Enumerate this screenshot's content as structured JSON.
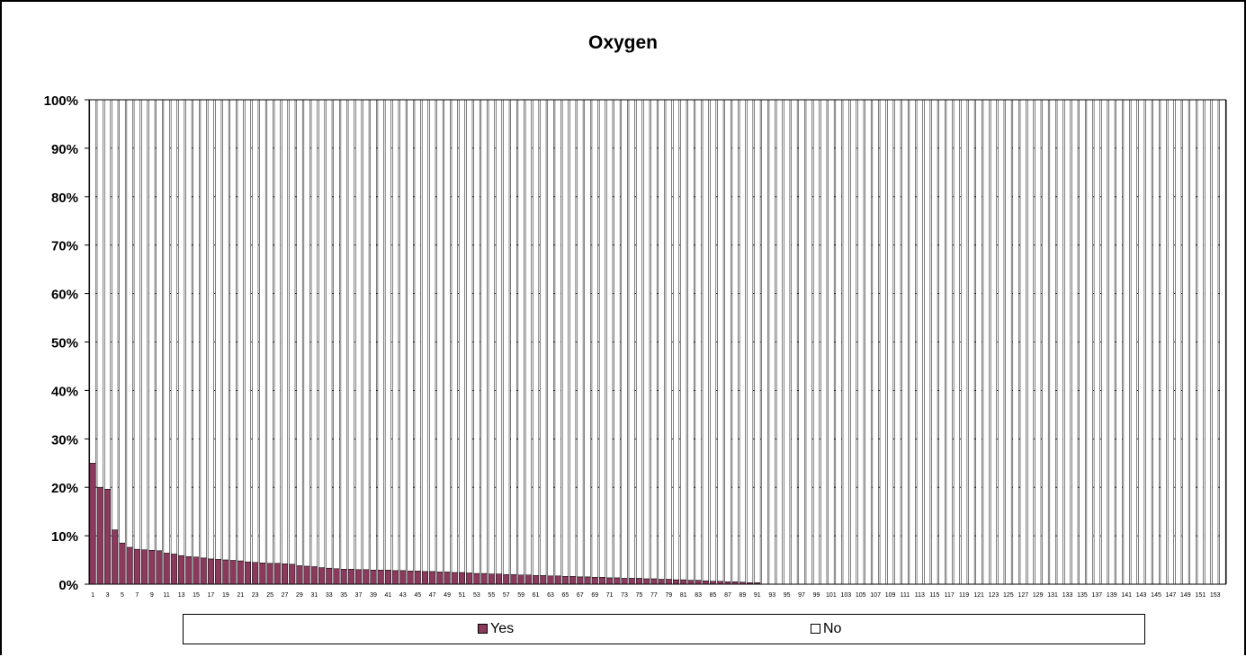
{
  "chart_data": {
    "type": "bar",
    "stacked": "percent",
    "title": "Oxygen",
    "xlabel": "",
    "ylabel": "",
    "ylim": [
      0,
      100
    ],
    "y_ticks": [
      "0%",
      "10%",
      "20%",
      "30%",
      "40%",
      "50%",
      "60%",
      "70%",
      "80%",
      "90%",
      "100%"
    ],
    "x_range": [
      1,
      154
    ],
    "x_tick_step": 2,
    "grid": "horizontal dashed",
    "legend_position": "bottom",
    "colors": {
      "Yes": "#8b3a5e",
      "No": "#ffffff"
    },
    "series": [
      {
        "name": "Yes",
        "values": [
          25.0,
          20.0,
          19.6,
          11.2,
          8.5,
          7.6,
          7.2,
          7.1,
          7.0,
          6.9,
          6.4,
          6.2,
          5.9,
          5.7,
          5.6,
          5.4,
          5.2,
          5.1,
          5.0,
          4.9,
          4.8,
          4.6,
          4.5,
          4.4,
          4.3,
          4.3,
          4.2,
          4.1,
          3.8,
          3.7,
          3.6,
          3.4,
          3.3,
          3.2,
          3.1,
          3.1,
          3.0,
          3.0,
          2.9,
          2.9,
          2.9,
          2.8,
          2.8,
          2.7,
          2.7,
          2.6,
          2.6,
          2.5,
          2.5,
          2.4,
          2.4,
          2.3,
          2.2,
          2.2,
          2.1,
          2.1,
          2.0,
          2.0,
          1.9,
          1.9,
          1.8,
          1.8,
          1.7,
          1.7,
          1.6,
          1.6,
          1.5,
          1.5,
          1.4,
          1.4,
          1.3,
          1.3,
          1.2,
          1.2,
          1.2,
          1.1,
          1.1,
          1.0,
          1.0,
          0.9,
          0.9,
          0.8,
          0.8,
          0.7,
          0.6,
          0.6,
          0.5,
          0.5,
          0.4,
          0.3,
          0.3,
          0,
          0,
          0,
          0,
          0,
          0,
          0,
          0,
          0,
          0,
          0,
          0,
          0,
          0,
          0,
          0,
          0,
          0,
          0,
          0,
          0,
          0,
          0,
          0,
          0,
          0,
          0,
          0,
          0,
          0,
          0,
          0,
          0,
          0,
          0,
          0,
          0,
          0,
          0,
          0,
          0,
          0,
          0,
          0,
          0,
          0,
          0,
          0,
          0,
          0,
          0,
          0,
          0,
          0,
          0,
          0,
          0,
          0,
          0,
          0,
          0,
          0,
          0
        ]
      },
      {
        "name": "No",
        "values": "complement to 100%"
      }
    ]
  },
  "legend": {
    "yes_label": "Yes",
    "no_label": "No"
  }
}
